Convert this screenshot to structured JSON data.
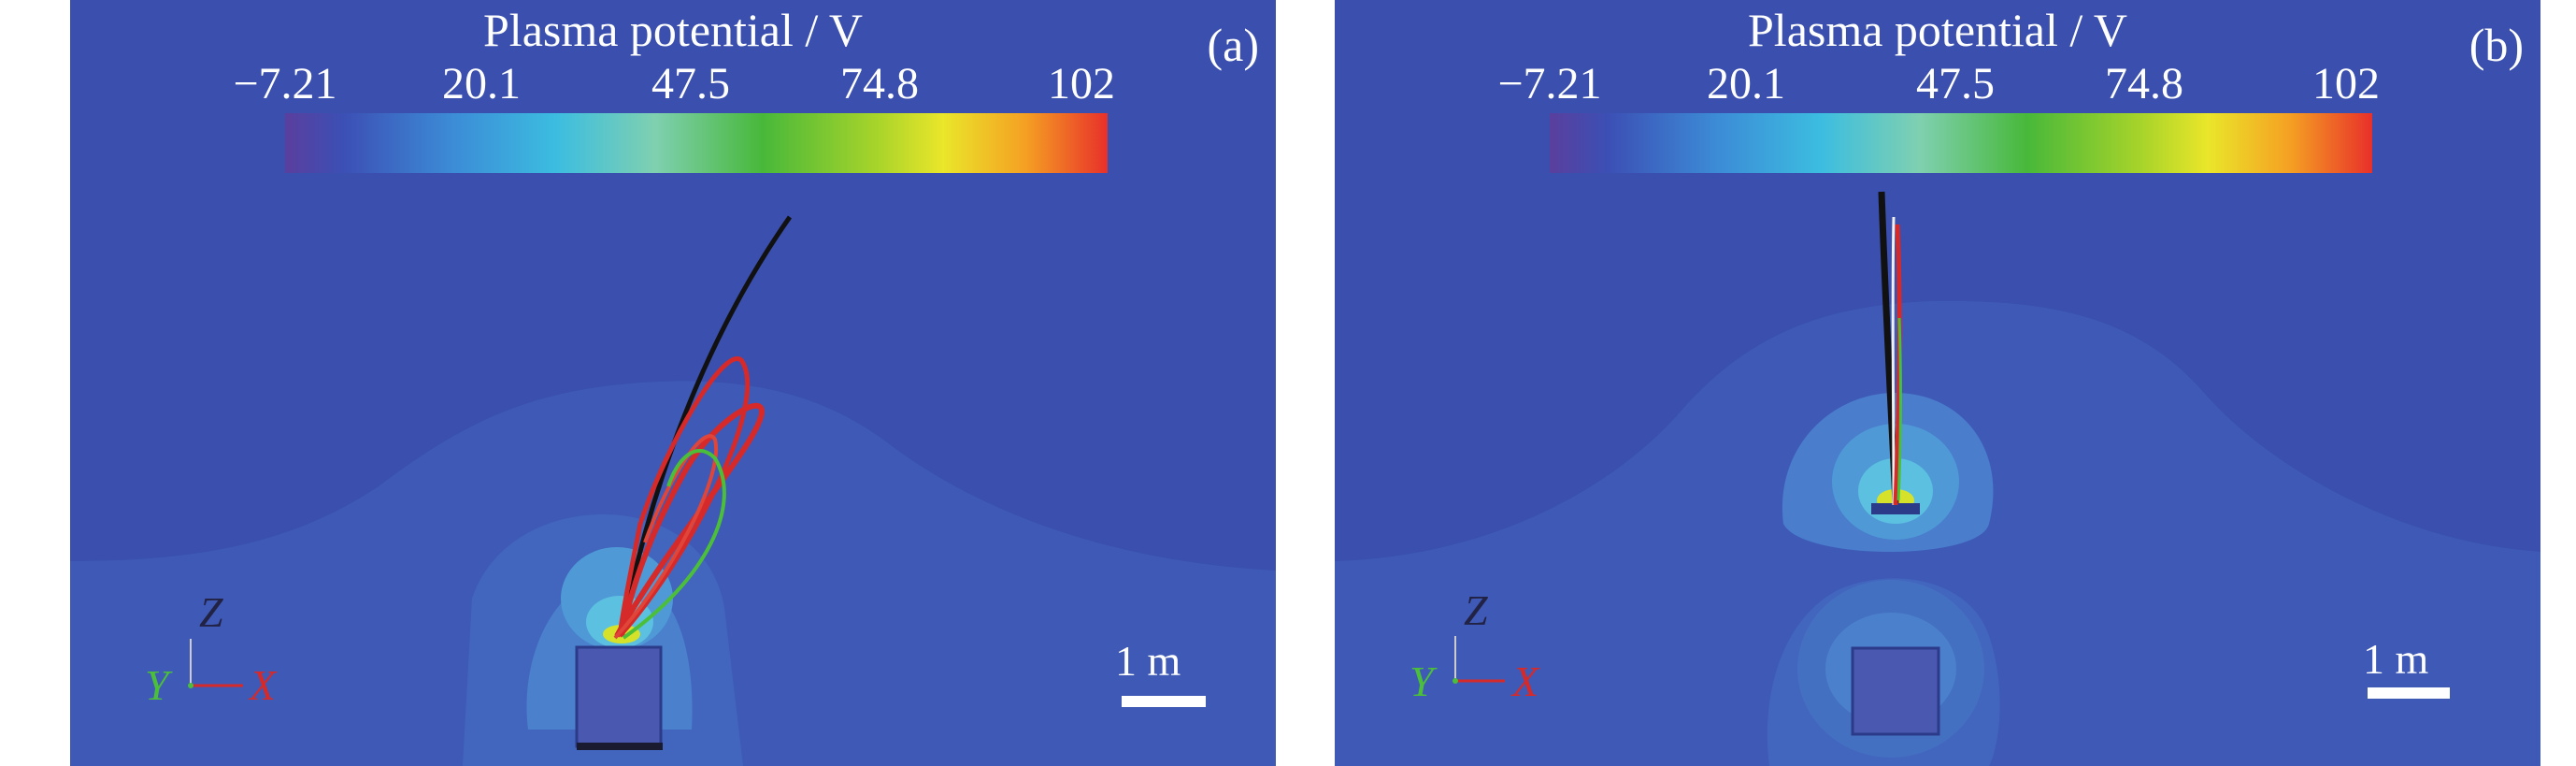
{
  "colorbar": {
    "title": "Plasma potential / V",
    "ticks": [
      "−7.21",
      "20.1",
      "47.5",
      "74.8",
      "102"
    ],
    "colors": [
      "#5a3f9e",
      "#3c6fc9",
      "#3cbde0",
      "#7fd0b0",
      "#48b83a",
      "#a8d42a",
      "#eae62a",
      "#f5a023",
      "#e8402a"
    ]
  },
  "background_color": "#3a4fae",
  "panels": [
    {
      "label": "(a)",
      "axes": {
        "z": "Z",
        "y": "Y",
        "x": "X"
      },
      "scale_label": "1 m"
    },
    {
      "label": "(b)",
      "axes": {
        "z": "Z",
        "y": "Y",
        "x": "X"
      },
      "scale_label": "1 m"
    }
  ]
}
